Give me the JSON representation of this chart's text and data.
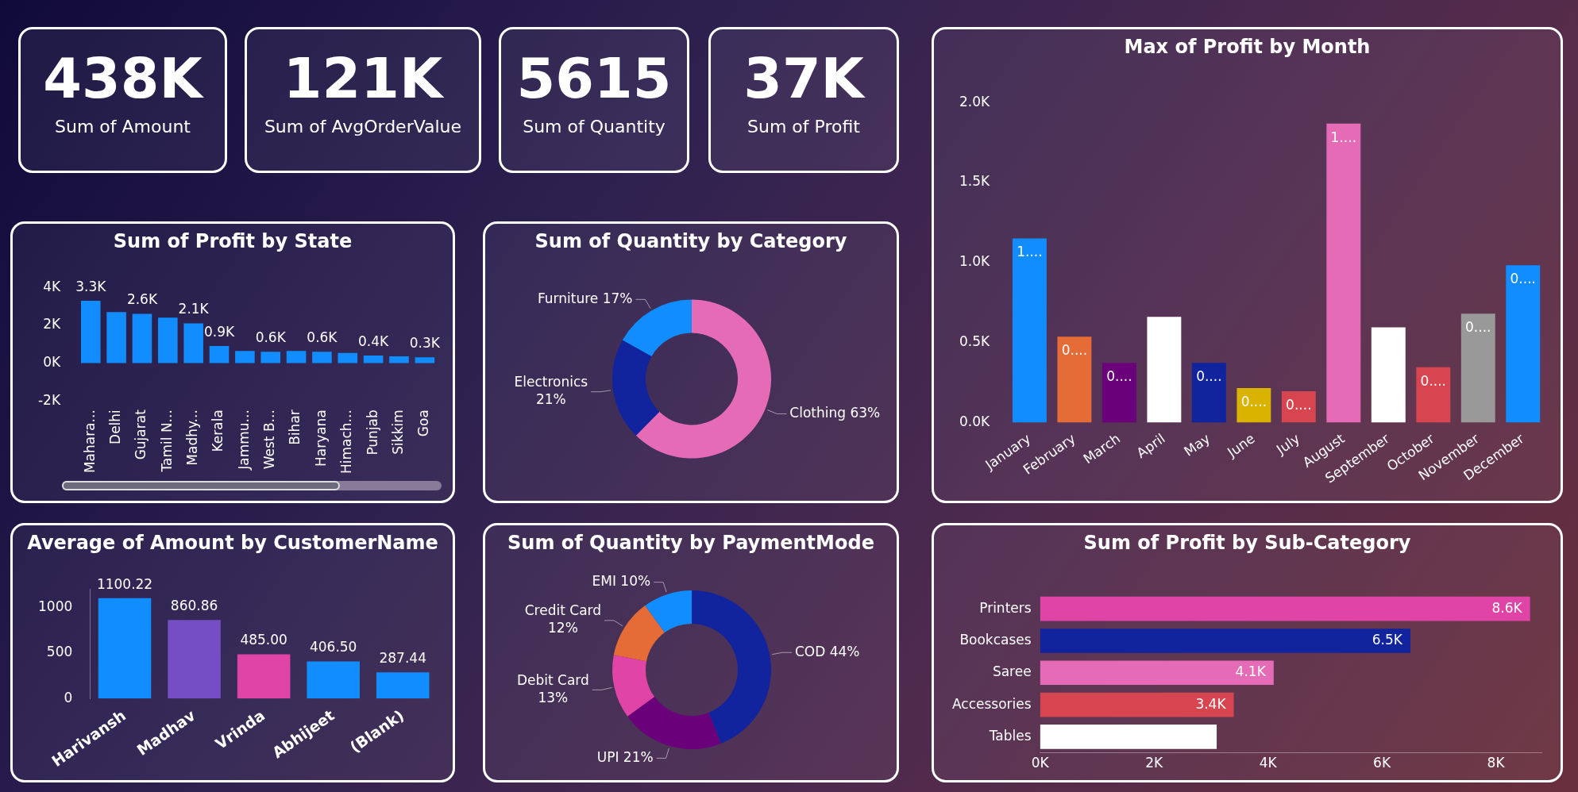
{
  "chart_data": [
    {
      "type": "other",
      "annotations": [
        "438K",
        "Sum of Amount",
        "121K",
        "Sum of AvgOrderValue",
        "5615",
        "Sum of Quantity",
        "37K",
        "Sum of Profit"
      ]
    },
    {
      "type": "bar",
      "title": "Max of Profit by Month",
      "categories": [
        "January",
        "February",
        "March",
        "April",
        "May",
        "June",
        "July",
        "August",
        "September",
        "October",
        "November",
        "December"
      ],
      "values": [
        1150,
        537,
        373,
        661,
        373,
        215,
        195,
        1868,
        595,
        346,
        680,
        983
      ],
      "colors": [
        "#118dff",
        "#e66c37",
        "#6b007b",
        "#ffffff",
        "#12239e",
        "#d9b300",
        "#d64550",
        "#e66bb7",
        "#ffffff",
        "#d64550",
        "#999999",
        "#118dff"
      ],
      "value_labels": [
        "1....",
        "0....",
        "0....",
        null,
        "0....",
        "0....",
        "0....",
        "1....",
        null,
        "0....",
        "0....",
        "0...."
      ],
      "ylim": [
        0,
        2000
      ],
      "yticks": [
        {
          "value": 0,
          "label": "0.0K"
        },
        {
          "value": 500,
          "label": "0.5K"
        },
        {
          "value": 1000,
          "label": "1.0K"
        },
        {
          "value": 1500,
          "label": "1.5K"
        },
        {
          "value": 2000,
          "label": "2.0K"
        }
      ]
    },
    {
      "type": "bar",
      "title": "Sum of Profit by State",
      "categories": [
        "Mahara...",
        "Delhi",
        "Gujarat",
        "Tamil N...",
        "Madhy...",
        "Kerala",
        "Jammu...",
        "West B...",
        "Bihar",
        "Haryana",
        "Himach...",
        "Punjab",
        "Sikkim",
        "Goa"
      ],
      "values": [
        3300,
        2700,
        2600,
        2400,
        2100,
        900,
        640,
        600,
        640,
        600,
        540,
        400,
        360,
        300
      ],
      "color": "#118dff",
      "value_labels": [
        "3.3K",
        null,
        "2.6K",
        null,
        "2.1K",
        "0.9K",
        null,
        "0.6K",
        null,
        "0.6K",
        null,
        "0.4K",
        null,
        "0.3K"
      ],
      "ylim": [
        -2000,
        4000
      ],
      "yticks": [
        {
          "value": -2000,
          "label": "-2K"
        },
        {
          "value": 0,
          "label": "0K"
        },
        {
          "value": 2000,
          "label": "2K"
        },
        {
          "value": 4000,
          "label": "4K"
        }
      ]
    },
    {
      "type": "donut",
      "title": "Sum of Quantity by Category",
      "categories": [
        "Clothing",
        "Electronics",
        "Furniture"
      ],
      "values": [
        63,
        21,
        17
      ],
      "colors": [
        "#e66bb7",
        "#12239e",
        "#118dff"
      ],
      "value_labels": [
        "63%",
        "21%",
        "17%"
      ]
    },
    {
      "type": "bar",
      "title": "Average of Amount by CustomerName",
      "categories": [
        "Harivansh",
        "Madhav",
        "Vrinda",
        "Abhijeet",
        "(Blank)"
      ],
      "values": [
        1100.22,
        860.86,
        485.0,
        406.5,
        287.44
      ],
      "colors": [
        "#118dff",
        "#744ec2",
        "#e044a7",
        "#118dff",
        "#118dff"
      ],
      "value_labels": [
        "1100.22",
        "860.86",
        "485.00",
        "406.50",
        "287.44"
      ],
      "ylim": [
        0,
        1200
      ],
      "yticks": [
        0,
        500,
        1000
      ]
    },
    {
      "type": "donut",
      "title": "Sum of Quantity by PaymentMode",
      "categories": [
        "COD",
        "UPI",
        "Debit Card",
        "Credit Card",
        "EMI"
      ],
      "values": [
        44,
        21,
        13,
        12,
        10
      ],
      "colors": [
        "#12239e",
        "#6b007b",
        "#e044a7",
        "#e66c37",
        "#118dff"
      ],
      "value_labels": [
        "44%",
        "21%",
        "13%",
        "12%",
        "10%"
      ]
    },
    {
      "type": "bar",
      "title": "Sum of Profit by Sub-Category",
      "orientation": "horizontal",
      "categories": [
        "Printers",
        "Bookcases",
        "Saree",
        "Accessories",
        "Tables"
      ],
      "values": [
        8600,
        6500,
        4100,
        3400,
        3100
      ],
      "colors": [
        "#e044a7",
        "#12239e",
        "#e66bb7",
        "#d64550",
        "#ffffff"
      ],
      "value_labels": [
        "8.6K",
        "6.5K",
        "4.1K",
        "3.4K",
        null
      ],
      "xlim": [
        0,
        8800
      ],
      "xticks": [
        {
          "value": 0,
          "label": "0K"
        },
        {
          "value": 2000,
          "label": "2K"
        },
        {
          "value": 4000,
          "label": "4K"
        },
        {
          "value": 6000,
          "label": "6K"
        },
        {
          "value": 8000,
          "label": "8K"
        }
      ]
    }
  ]
}
